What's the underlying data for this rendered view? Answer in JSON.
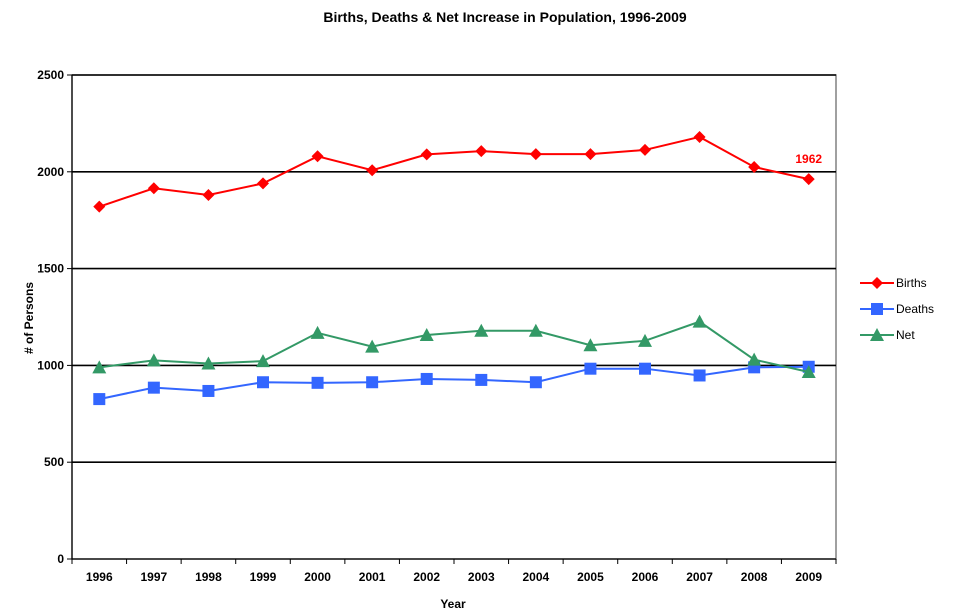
{
  "chart_data": {
    "type": "line",
    "title": "Births, Deaths & Net Increase in Population, 1996-2009",
    "xlabel": "Year",
    "ylabel": "# of Persons",
    "categories": [
      "1996",
      "1997",
      "1998",
      "1999",
      "2000",
      "2001",
      "2002",
      "2003",
      "2004",
      "2005",
      "2006",
      "2007",
      "2008",
      "2009"
    ],
    "ylim": [
      0,
      2500
    ],
    "yticks": [
      0,
      500,
      1000,
      1500,
      2000,
      2500
    ],
    "grid": "horizontal",
    "legend_position": "right",
    "series": [
      {
        "name": "Births",
        "color": "#ff0000",
        "marker": "diamond",
        "values": [
          1820,
          1915,
          1880,
          1940,
          2080,
          2008,
          2090,
          2107,
          2091,
          2091,
          2113,
          2180,
          2025,
          1962
        ]
      },
      {
        "name": "Deaths",
        "color": "#3366ff",
        "marker": "square",
        "values": [
          826,
          885,
          868,
          913,
          910,
          913,
          930,
          925,
          913,
          983,
          983,
          948,
          990,
          993
        ]
      },
      {
        "name": "Net",
        "color": "#339966",
        "marker": "triangle",
        "values": [
          990,
          1026,
          1010,
          1022,
          1168,
          1097,
          1157,
          1179,
          1179,
          1104,
          1127,
          1226,
          1030,
          966
        ]
      }
    ],
    "annotations": [
      {
        "series": "Births",
        "category": "2009",
        "text": "1962",
        "color": "#ff0000"
      }
    ]
  }
}
